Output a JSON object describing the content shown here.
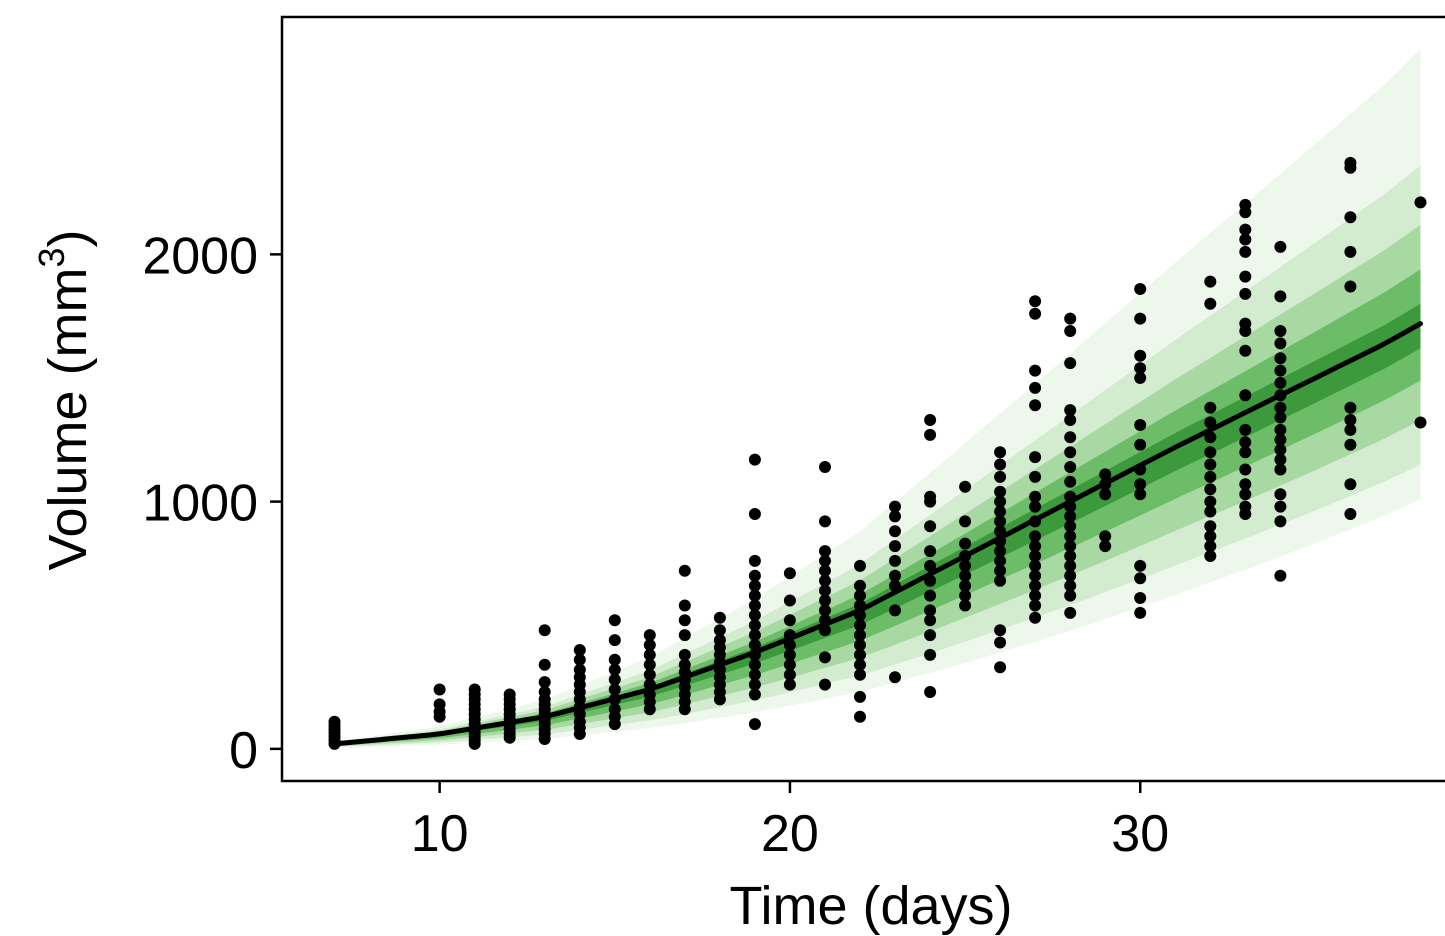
{
  "chart_data": {
    "type": "scatter",
    "title": "",
    "xlabel": "Time (days)",
    "ylabel_base": "Volume (mm",
    "ylabel_sup": "3",
    "ylabel_close": ")",
    "xlim": [
      5.5,
      38.9
    ],
    "ylim": [
      -130,
      2960
    ],
    "xticks": [
      10,
      20,
      30
    ],
    "yticks": [
      0,
      1000,
      2000
    ],
    "grid": false,
    "legend": "none",
    "colors": {
      "band_outer": "#eef7ec",
      "band_2": "#d3ecd0",
      "band_3": "#a8d9a2",
      "band_4": "#6dbd68",
      "band_inner": "#3d9a3c",
      "median_line": "#000000",
      "points": "#000000"
    },
    "median_line": {
      "x": [
        7,
        10,
        13,
        16,
        19,
        22,
        25,
        28,
        31,
        34,
        37,
        38
      ],
      "y": [
        20,
        60,
        130,
        240,
        390,
        560,
        780,
        1000,
        1220,
        1430,
        1640,
        1720
      ]
    },
    "prediction_bands": [
      {
        "level": "outer",
        "x": [
          7,
          38
        ],
        "lower": [
          5,
          1010
        ],
        "upper": [
          30,
          2830
        ]
      },
      {
        "level": "2",
        "x": [
          7,
          38
        ],
        "lower": [
          8,
          1150
        ],
        "upper": [
          26,
          2360
        ]
      },
      {
        "level": "3",
        "x": [
          7,
          38
        ],
        "lower": [
          11,
          1330
        ],
        "upper": [
          24,
          2120
        ]
      },
      {
        "level": "4",
        "x": [
          7,
          38
        ],
        "lower": [
          14,
          1490
        ],
        "upper": [
          22,
          1940
        ]
      },
      {
        "level": "inner",
        "x": [
          7,
          38
        ],
        "lower": [
          17,
          1620
        ],
        "upper": [
          21,
          1800
        ]
      }
    ],
    "points": [
      {
        "x": 7,
        "y": 20
      },
      {
        "x": 7,
        "y": 35
      },
      {
        "x": 7,
        "y": 50
      },
      {
        "x": 7,
        "y": 65
      },
      {
        "x": 7,
        "y": 80
      },
      {
        "x": 7,
        "y": 95
      },
      {
        "x": 7,
        "y": 110
      },
      {
        "x": 10,
        "y": 130
      },
      {
        "x": 10,
        "y": 150
      },
      {
        "x": 10,
        "y": 180
      },
      {
        "x": 10,
        "y": 240
      },
      {
        "x": 11,
        "y": 20
      },
      {
        "x": 11,
        "y": 35
      },
      {
        "x": 11,
        "y": 50
      },
      {
        "x": 11,
        "y": 65
      },
      {
        "x": 11,
        "y": 80
      },
      {
        "x": 11,
        "y": 100
      },
      {
        "x": 11,
        "y": 120
      },
      {
        "x": 11,
        "y": 140
      },
      {
        "x": 11,
        "y": 160
      },
      {
        "x": 11,
        "y": 180
      },
      {
        "x": 11,
        "y": 200
      },
      {
        "x": 11,
        "y": 220
      },
      {
        "x": 11,
        "y": 240
      },
      {
        "x": 12,
        "y": 45
      },
      {
        "x": 12,
        "y": 60
      },
      {
        "x": 12,
        "y": 80
      },
      {
        "x": 12,
        "y": 100
      },
      {
        "x": 12,
        "y": 120
      },
      {
        "x": 12,
        "y": 140
      },
      {
        "x": 12,
        "y": 160
      },
      {
        "x": 12,
        "y": 180
      },
      {
        "x": 12,
        "y": 200
      },
      {
        "x": 12,
        "y": 220
      },
      {
        "x": 13,
        "y": 40
      },
      {
        "x": 13,
        "y": 60
      },
      {
        "x": 13,
        "y": 80
      },
      {
        "x": 13,
        "y": 100
      },
      {
        "x": 13,
        "y": 120
      },
      {
        "x": 13,
        "y": 140
      },
      {
        "x": 13,
        "y": 160
      },
      {
        "x": 13,
        "y": 180
      },
      {
        "x": 13,
        "y": 200
      },
      {
        "x": 13,
        "y": 230
      },
      {
        "x": 13,
        "y": 270
      },
      {
        "x": 13,
        "y": 340
      },
      {
        "x": 13,
        "y": 480
      },
      {
        "x": 14,
        "y": 60
      },
      {
        "x": 14,
        "y": 85
      },
      {
        "x": 14,
        "y": 110
      },
      {
        "x": 14,
        "y": 140
      },
      {
        "x": 14,
        "y": 170
      },
      {
        "x": 14,
        "y": 200
      },
      {
        "x": 14,
        "y": 230
      },
      {
        "x": 14,
        "y": 260
      },
      {
        "x": 14,
        "y": 290
      },
      {
        "x": 14,
        "y": 320
      },
      {
        "x": 14,
        "y": 360
      },
      {
        "x": 14,
        "y": 400
      },
      {
        "x": 15,
        "y": 100
      },
      {
        "x": 15,
        "y": 130
      },
      {
        "x": 15,
        "y": 160
      },
      {
        "x": 15,
        "y": 200
      },
      {
        "x": 15,
        "y": 240
      },
      {
        "x": 15,
        "y": 280
      },
      {
        "x": 15,
        "y": 320
      },
      {
        "x": 15,
        "y": 360
      },
      {
        "x": 15,
        "y": 440
      },
      {
        "x": 15,
        "y": 520
      },
      {
        "x": 16,
        "y": 160
      },
      {
        "x": 16,
        "y": 190
      },
      {
        "x": 16,
        "y": 220
      },
      {
        "x": 16,
        "y": 260
      },
      {
        "x": 16,
        "y": 300
      },
      {
        "x": 16,
        "y": 340
      },
      {
        "x": 16,
        "y": 380
      },
      {
        "x": 16,
        "y": 420
      },
      {
        "x": 16,
        "y": 460
      },
      {
        "x": 17,
        "y": 160
      },
      {
        "x": 17,
        "y": 190
      },
      {
        "x": 17,
        "y": 220
      },
      {
        "x": 17,
        "y": 250
      },
      {
        "x": 17,
        "y": 280
      },
      {
        "x": 17,
        "y": 310
      },
      {
        "x": 17,
        "y": 340
      },
      {
        "x": 17,
        "y": 380
      },
      {
        "x": 17,
        "y": 460
      },
      {
        "x": 17,
        "y": 520
      },
      {
        "x": 17,
        "y": 580
      },
      {
        "x": 17,
        "y": 720
      },
      {
        "x": 18,
        "y": 200
      },
      {
        "x": 18,
        "y": 230
      },
      {
        "x": 18,
        "y": 260
      },
      {
        "x": 18,
        "y": 290
      },
      {
        "x": 18,
        "y": 320
      },
      {
        "x": 18,
        "y": 350
      },
      {
        "x": 18,
        "y": 380
      },
      {
        "x": 18,
        "y": 410
      },
      {
        "x": 18,
        "y": 440
      },
      {
        "x": 18,
        "y": 480
      },
      {
        "x": 18,
        "y": 530
      },
      {
        "x": 19,
        "y": 100
      },
      {
        "x": 19,
        "y": 220
      },
      {
        "x": 19,
        "y": 260
      },
      {
        "x": 19,
        "y": 300
      },
      {
        "x": 19,
        "y": 340
      },
      {
        "x": 19,
        "y": 380
      },
      {
        "x": 19,
        "y": 420
      },
      {
        "x": 19,
        "y": 460
      },
      {
        "x": 19,
        "y": 500
      },
      {
        "x": 19,
        "y": 540
      },
      {
        "x": 19,
        "y": 580
      },
      {
        "x": 19,
        "y": 620
      },
      {
        "x": 19,
        "y": 660
      },
      {
        "x": 19,
        "y": 700
      },
      {
        "x": 19,
        "y": 760
      },
      {
        "x": 19,
        "y": 950
      },
      {
        "x": 19,
        "y": 1170
      },
      {
        "x": 20,
        "y": 260
      },
      {
        "x": 20,
        "y": 300
      },
      {
        "x": 20,
        "y": 340
      },
      {
        "x": 20,
        "y": 380
      },
      {
        "x": 20,
        "y": 420
      },
      {
        "x": 20,
        "y": 460
      },
      {
        "x": 20,
        "y": 520
      },
      {
        "x": 20,
        "y": 600
      },
      {
        "x": 20,
        "y": 710
      },
      {
        "x": 21,
        "y": 260
      },
      {
        "x": 21,
        "y": 370
      },
      {
        "x": 21,
        "y": 480
      },
      {
        "x": 21,
        "y": 520
      },
      {
        "x": 21,
        "y": 560
      },
      {
        "x": 21,
        "y": 600
      },
      {
        "x": 21,
        "y": 640
      },
      {
        "x": 21,
        "y": 680
      },
      {
        "x": 21,
        "y": 720
      },
      {
        "x": 21,
        "y": 760
      },
      {
        "x": 21,
        "y": 800
      },
      {
        "x": 21,
        "y": 920
      },
      {
        "x": 21,
        "y": 1140
      },
      {
        "x": 22,
        "y": 130
      },
      {
        "x": 22,
        "y": 210
      },
      {
        "x": 22,
        "y": 300
      },
      {
        "x": 22,
        "y": 340
      },
      {
        "x": 22,
        "y": 380
      },
      {
        "x": 22,
        "y": 420
      },
      {
        "x": 22,
        "y": 460
      },
      {
        "x": 22,
        "y": 500
      },
      {
        "x": 22,
        "y": 540
      },
      {
        "x": 22,
        "y": 580
      },
      {
        "x": 22,
        "y": 620
      },
      {
        "x": 22,
        "y": 660
      },
      {
        "x": 22,
        "y": 740
      },
      {
        "x": 23,
        "y": 290
      },
      {
        "x": 23,
        "y": 560
      },
      {
        "x": 23,
        "y": 660
      },
      {
        "x": 23,
        "y": 700
      },
      {
        "x": 23,
        "y": 760
      },
      {
        "x": 23,
        "y": 820
      },
      {
        "x": 23,
        "y": 880
      },
      {
        "x": 23,
        "y": 940
      },
      {
        "x": 23,
        "y": 980
      },
      {
        "x": 24,
        "y": 230
      },
      {
        "x": 24,
        "y": 380
      },
      {
        "x": 24,
        "y": 460
      },
      {
        "x": 24,
        "y": 520
      },
      {
        "x": 24,
        "y": 560
      },
      {
        "x": 24,
        "y": 620
      },
      {
        "x": 24,
        "y": 680
      },
      {
        "x": 24,
        "y": 740
      },
      {
        "x": 24,
        "y": 800
      },
      {
        "x": 24,
        "y": 900
      },
      {
        "x": 24,
        "y": 1000
      },
      {
        "x": 24,
        "y": 1020
      },
      {
        "x": 24,
        "y": 1270
      },
      {
        "x": 24,
        "y": 1330
      },
      {
        "x": 25,
        "y": 580
      },
      {
        "x": 25,
        "y": 620
      },
      {
        "x": 25,
        "y": 660
      },
      {
        "x": 25,
        "y": 700
      },
      {
        "x": 25,
        "y": 740
      },
      {
        "x": 25,
        "y": 780
      },
      {
        "x": 25,
        "y": 830
      },
      {
        "x": 25,
        "y": 920
      },
      {
        "x": 25,
        "y": 1060
      },
      {
        "x": 26,
        "y": 330
      },
      {
        "x": 26,
        "y": 430
      },
      {
        "x": 26,
        "y": 480
      },
      {
        "x": 26,
        "y": 680
      },
      {
        "x": 26,
        "y": 720
      },
      {
        "x": 26,
        "y": 760
      },
      {
        "x": 26,
        "y": 800
      },
      {
        "x": 26,
        "y": 840
      },
      {
        "x": 26,
        "y": 880
      },
      {
        "x": 26,
        "y": 920
      },
      {
        "x": 26,
        "y": 960
      },
      {
        "x": 26,
        "y": 1000
      },
      {
        "x": 26,
        "y": 1040
      },
      {
        "x": 26,
        "y": 1100
      },
      {
        "x": 26,
        "y": 1150
      },
      {
        "x": 26,
        "y": 1200
      },
      {
        "x": 27,
        "y": 530
      },
      {
        "x": 27,
        "y": 580
      },
      {
        "x": 27,
        "y": 620
      },
      {
        "x": 27,
        "y": 660
      },
      {
        "x": 27,
        "y": 700
      },
      {
        "x": 27,
        "y": 740
      },
      {
        "x": 27,
        "y": 780
      },
      {
        "x": 27,
        "y": 820
      },
      {
        "x": 27,
        "y": 860
      },
      {
        "x": 27,
        "y": 920
      },
      {
        "x": 27,
        "y": 980
      },
      {
        "x": 27,
        "y": 1020
      },
      {
        "x": 27,
        "y": 1100
      },
      {
        "x": 27,
        "y": 1180
      },
      {
        "x": 27,
        "y": 1390
      },
      {
        "x": 27,
        "y": 1460
      },
      {
        "x": 27,
        "y": 1530
      },
      {
        "x": 27,
        "y": 1760
      },
      {
        "x": 27,
        "y": 1810
      },
      {
        "x": 28,
        "y": 550
      },
      {
        "x": 28,
        "y": 620
      },
      {
        "x": 28,
        "y": 660
      },
      {
        "x": 28,
        "y": 700
      },
      {
        "x": 28,
        "y": 740
      },
      {
        "x": 28,
        "y": 780
      },
      {
        "x": 28,
        "y": 820
      },
      {
        "x": 28,
        "y": 860
      },
      {
        "x": 28,
        "y": 900
      },
      {
        "x": 28,
        "y": 940
      },
      {
        "x": 28,
        "y": 980
      },
      {
        "x": 28,
        "y": 1020
      },
      {
        "x": 28,
        "y": 1080
      },
      {
        "x": 28,
        "y": 1140
      },
      {
        "x": 28,
        "y": 1200
      },
      {
        "x": 28,
        "y": 1260
      },
      {
        "x": 28,
        "y": 1330
      },
      {
        "x": 28,
        "y": 1370
      },
      {
        "x": 28,
        "y": 1560
      },
      {
        "x": 28,
        "y": 1690
      },
      {
        "x": 28,
        "y": 1740
      },
      {
        "x": 29,
        "y": 820
      },
      {
        "x": 29,
        "y": 860
      },
      {
        "x": 29,
        "y": 1030
      },
      {
        "x": 29,
        "y": 1070
      },
      {
        "x": 29,
        "y": 1110
      },
      {
        "x": 30,
        "y": 550
      },
      {
        "x": 30,
        "y": 610
      },
      {
        "x": 30,
        "y": 690
      },
      {
        "x": 30,
        "y": 740
      },
      {
        "x": 30,
        "y": 1030
      },
      {
        "x": 30,
        "y": 1070
      },
      {
        "x": 30,
        "y": 1130
      },
      {
        "x": 30,
        "y": 1230
      },
      {
        "x": 30,
        "y": 1310
      },
      {
        "x": 30,
        "y": 1500
      },
      {
        "x": 30,
        "y": 1540
      },
      {
        "x": 30,
        "y": 1590
      },
      {
        "x": 30,
        "y": 1740
      },
      {
        "x": 30,
        "y": 1860
      },
      {
        "x": 32,
        "y": 780
      },
      {
        "x": 32,
        "y": 820
      },
      {
        "x": 32,
        "y": 860
      },
      {
        "x": 32,
        "y": 900
      },
      {
        "x": 32,
        "y": 960
      },
      {
        "x": 32,
        "y": 1000
      },
      {
        "x": 32,
        "y": 1050
      },
      {
        "x": 32,
        "y": 1100
      },
      {
        "x": 32,
        "y": 1150
      },
      {
        "x": 32,
        "y": 1200
      },
      {
        "x": 32,
        "y": 1260
      },
      {
        "x": 32,
        "y": 1320
      },
      {
        "x": 32,
        "y": 1380
      },
      {
        "x": 32,
        "y": 1800
      },
      {
        "x": 32,
        "y": 1890
      },
      {
        "x": 33,
        "y": 950
      },
      {
        "x": 33,
        "y": 980
      },
      {
        "x": 33,
        "y": 1030
      },
      {
        "x": 33,
        "y": 1070
      },
      {
        "x": 33,
        "y": 1130
      },
      {
        "x": 33,
        "y": 1200
      },
      {
        "x": 33,
        "y": 1240
      },
      {
        "x": 33,
        "y": 1290
      },
      {
        "x": 33,
        "y": 1430
      },
      {
        "x": 33,
        "y": 1610
      },
      {
        "x": 33,
        "y": 1690
      },
      {
        "x": 33,
        "y": 1720
      },
      {
        "x": 33,
        "y": 1840
      },
      {
        "x": 33,
        "y": 1910
      },
      {
        "x": 33,
        "y": 2010
      },
      {
        "x": 33,
        "y": 2060
      },
      {
        "x": 33,
        "y": 2100
      },
      {
        "x": 33,
        "y": 2170
      },
      {
        "x": 33,
        "y": 2200
      },
      {
        "x": 34,
        "y": 700
      },
      {
        "x": 34,
        "y": 920
      },
      {
        "x": 34,
        "y": 980
      },
      {
        "x": 34,
        "y": 1030
      },
      {
        "x": 34,
        "y": 1130
      },
      {
        "x": 34,
        "y": 1170
      },
      {
        "x": 34,
        "y": 1210
      },
      {
        "x": 34,
        "y": 1250
      },
      {
        "x": 34,
        "y": 1290
      },
      {
        "x": 34,
        "y": 1340
      },
      {
        "x": 34,
        "y": 1380
      },
      {
        "x": 34,
        "y": 1430
      },
      {
        "x": 34,
        "y": 1480
      },
      {
        "x": 34,
        "y": 1530
      },
      {
        "x": 34,
        "y": 1580
      },
      {
        "x": 34,
        "y": 1640
      },
      {
        "x": 34,
        "y": 1690
      },
      {
        "x": 34,
        "y": 1830
      },
      {
        "x": 34,
        "y": 2030
      },
      {
        "x": 36,
        "y": 950
      },
      {
        "x": 36,
        "y": 1070
      },
      {
        "x": 36,
        "y": 1230
      },
      {
        "x": 36,
        "y": 1290
      },
      {
        "x": 36,
        "y": 1330
      },
      {
        "x": 36,
        "y": 1380
      },
      {
        "x": 36,
        "y": 1870
      },
      {
        "x": 36,
        "y": 2010
      },
      {
        "x": 36,
        "y": 2150
      },
      {
        "x": 36,
        "y": 2350
      },
      {
        "x": 36,
        "y": 2370
      },
      {
        "x": 38,
        "y": 1320
      },
      {
        "x": 38,
        "y": 2210
      }
    ]
  }
}
